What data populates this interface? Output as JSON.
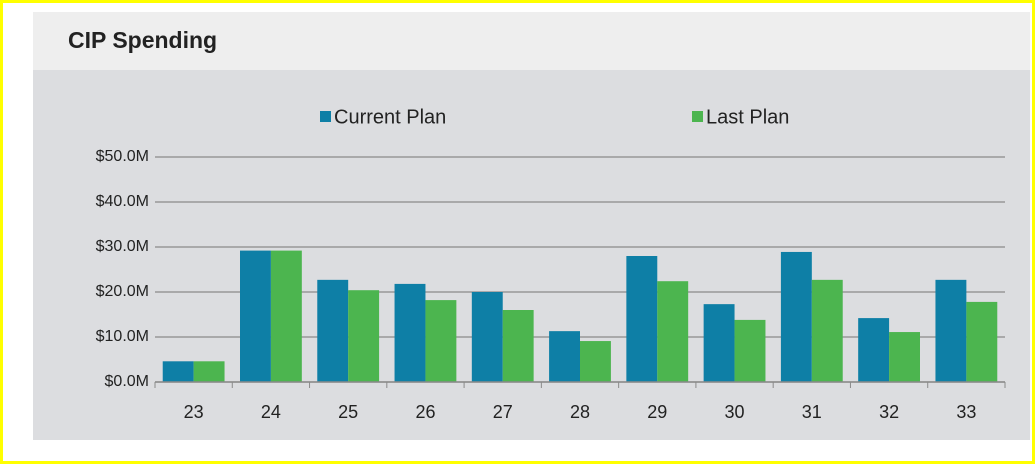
{
  "chart_data": {
    "type": "bar",
    "title": "CIP Spending",
    "categories": [
      "23",
      "24",
      "25",
      "26",
      "27",
      "28",
      "29",
      "30",
      "31",
      "32",
      "33"
    ],
    "series": [
      {
        "name": "Current Plan",
        "color": "#0e7fa6",
        "values": [
          4.6,
          29.2,
          22.7,
          21.8,
          20,
          11.3,
          28,
          17.3,
          28.9,
          14.2,
          22.7
        ]
      },
      {
        "name": "Last Plan",
        "color": "#4cb54f",
        "values": [
          4.6,
          29.2,
          20.4,
          18.2,
          16,
          9.1,
          22.4,
          13.8,
          22.7,
          11.1,
          17.8
        ]
      }
    ],
    "ylim": [
      0,
      50
    ],
    "yticks": [
      {
        "value": 0,
        "label": "$0.0M"
      },
      {
        "value": 10,
        "label": "$10.0M"
      },
      {
        "value": 20,
        "label": "$20.0M"
      },
      {
        "value": 30,
        "label": "$30.0M"
      },
      {
        "value": 40,
        "label": "$40.0M"
      },
      {
        "value": 50,
        "label": "$50.0M"
      }
    ],
    "grid": true,
    "legend": "top"
  }
}
